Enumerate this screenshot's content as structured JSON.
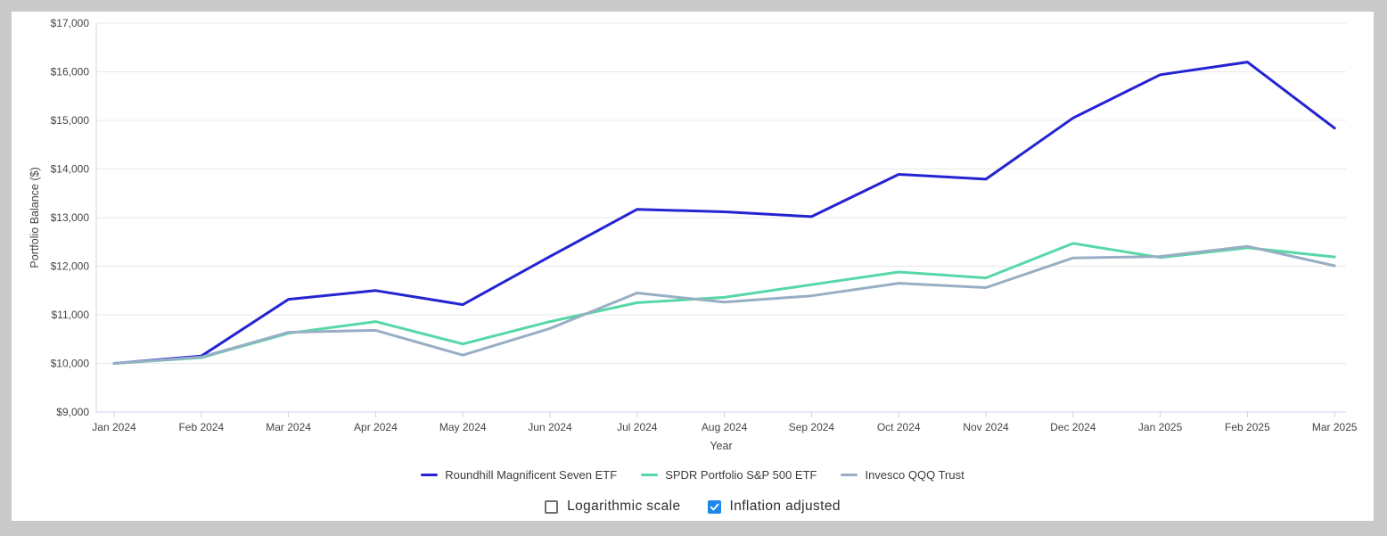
{
  "page": {
    "background_color": "#c9c9c9",
    "card_color": "#ffffff"
  },
  "chart_data": {
    "type": "line",
    "title": "",
    "xlabel": "Year",
    "ylabel": "Portfolio Balance ($)",
    "ylim": [
      9000,
      17000
    ],
    "ytick_step": 1000,
    "ytick_labels": [
      "$9,000",
      "$10,000",
      "$11,000",
      "$12,000",
      "$13,000",
      "$14,000",
      "$15,000",
      "$16,000",
      "$17,000"
    ],
    "categories": [
      "Jan 2024",
      "Feb 2024",
      "Mar 2024",
      "Apr 2024",
      "May 2024",
      "Jun 2024",
      "Jul 2024",
      "Aug 2024",
      "Sep 2024",
      "Oct 2024",
      "Nov 2024",
      "Dec 2024",
      "Jan 2025",
      "Feb 2025",
      "Mar 2025"
    ],
    "grid": true,
    "legend_position": "bottom",
    "series": [
      {
        "name": "Roundhill Magnificent Seven ETF",
        "color": "#2323d2",
        "values": [
          10000,
          10150,
          11320,
          11500,
          11210,
          12200,
          13170,
          13120,
          13020,
          13890,
          13790,
          15050,
          15940,
          16200,
          14840
        ]
      },
      {
        "name": "SPDR Portfolio S&P 500 ETF",
        "color": "#55d8a6",
        "values": [
          10000,
          10120,
          10620,
          10860,
          10400,
          10860,
          11250,
          11360,
          11620,
          11880,
          11760,
          12470,
          12180,
          12380,
          12190
        ]
      },
      {
        "name": "Invesco QQQ Trust",
        "color": "#97aec4",
        "values": [
          10000,
          10130,
          10640,
          10680,
          10170,
          10720,
          11450,
          11260,
          11390,
          11650,
          11560,
          12170,
          12200,
          12410,
          12010
        ]
      }
    ],
    "style": {
      "grid_color": "#e8e8e8",
      "axis_color": "#ccd6e8",
      "tick_label_color": "#454545",
      "axis_title_color": "#454545"
    }
  },
  "controls": {
    "logarithmic": {
      "label": "Logarithmic scale",
      "checked": false
    },
    "inflation": {
      "label": "Inflation adjusted",
      "checked": true
    },
    "checked_color": "#1d88ea"
  }
}
